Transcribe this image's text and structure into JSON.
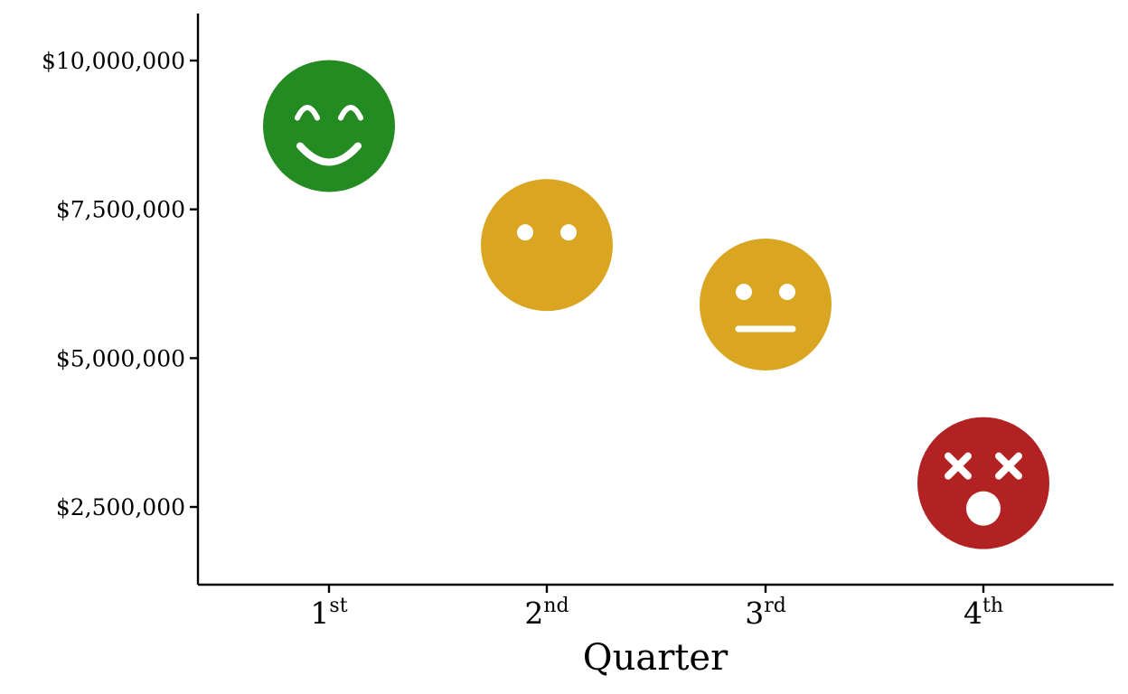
{
  "chart_data": {
    "type": "scatter",
    "title": "",
    "xlabel": "Quarter",
    "ylabel": "",
    "ylim": [
      1250000,
      10800000
    ],
    "y_ticks": [
      {
        "value": 2500000,
        "label": "$2,500,000"
      },
      {
        "value": 5000000,
        "label": "$5,000,000"
      },
      {
        "value": 7500000,
        "label": "$7,500,000"
      },
      {
        "value": 10000000,
        "label": "$10,000,000"
      }
    ],
    "categories": [
      {
        "base": "1",
        "sup": "st"
      },
      {
        "base": "2",
        "sup": "nd"
      },
      {
        "base": "3",
        "sup": "rd"
      },
      {
        "base": "4",
        "sup": "th"
      }
    ],
    "points": [
      {
        "category": "1st",
        "value": 8900000,
        "face": "happy",
        "color": "#238b21",
        "icon": "smiling-face-icon"
      },
      {
        "category": "2nd",
        "value": 6900000,
        "face": "blank",
        "color": "#daa520",
        "icon": "neutral-blank-face-icon"
      },
      {
        "category": "3rd",
        "value": 5900000,
        "face": "neutral",
        "color": "#daa520",
        "icon": "neutral-face-icon"
      },
      {
        "category": "4th",
        "value": 2900000,
        "face": "dizzy",
        "color": "#b22222",
        "icon": "dizzy-face-icon"
      }
    ],
    "grid": false,
    "legend": "none"
  }
}
